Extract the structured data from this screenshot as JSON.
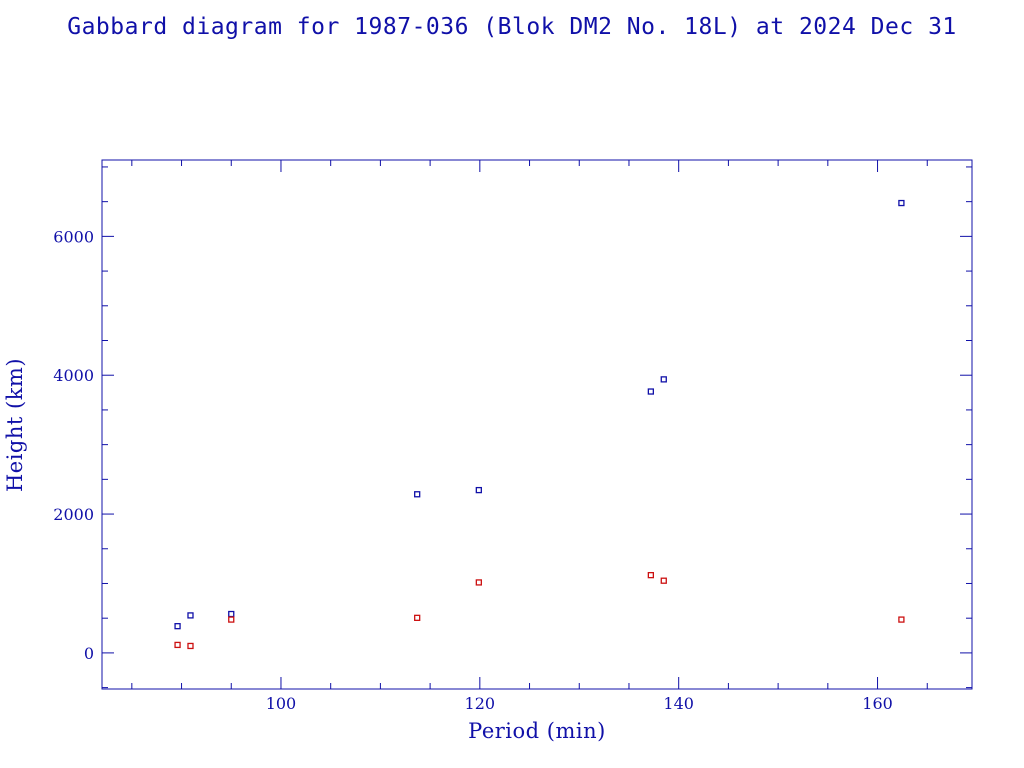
{
  "chart_data": {
    "type": "scatter",
    "title": "Gabbard diagram for 1987-036 (Blok DM2 No. 18L) at 2024 Dec 31",
    "xlabel": "Period (min)",
    "ylabel": "Height (km)",
    "xlim": [
      82,
      169.5
    ],
    "ylim": [
      -520,
      7100
    ],
    "x_ticks": [
      100,
      120,
      140,
      160
    ],
    "y_ticks": [
      0,
      2000,
      4000,
      6000
    ],
    "x_minor_step": 5,
    "y_minor_step": 500,
    "grid": false,
    "series": [
      {
        "color": "#1010a8",
        "points": [
          {
            "x": 89.6,
            "y": 385
          },
          {
            "x": 90.9,
            "y": 540
          },
          {
            "x": 95.0,
            "y": 560
          },
          {
            "x": 113.7,
            "y": 2285
          },
          {
            "x": 119.9,
            "y": 2345
          },
          {
            "x": 137.2,
            "y": 3765
          },
          {
            "x": 138.5,
            "y": 3940
          },
          {
            "x": 162.4,
            "y": 6480
          }
        ]
      },
      {
        "color": "#cc1010",
        "points": [
          {
            "x": 89.6,
            "y": 115
          },
          {
            "x": 90.9,
            "y": 100
          },
          {
            "x": 95.0,
            "y": 480
          },
          {
            "x": 113.7,
            "y": 505
          },
          {
            "x": 119.9,
            "y": 1015
          },
          {
            "x": 137.2,
            "y": 1120
          },
          {
            "x": 138.5,
            "y": 1040
          },
          {
            "x": 162.4,
            "y": 480
          }
        ]
      }
    ]
  }
}
